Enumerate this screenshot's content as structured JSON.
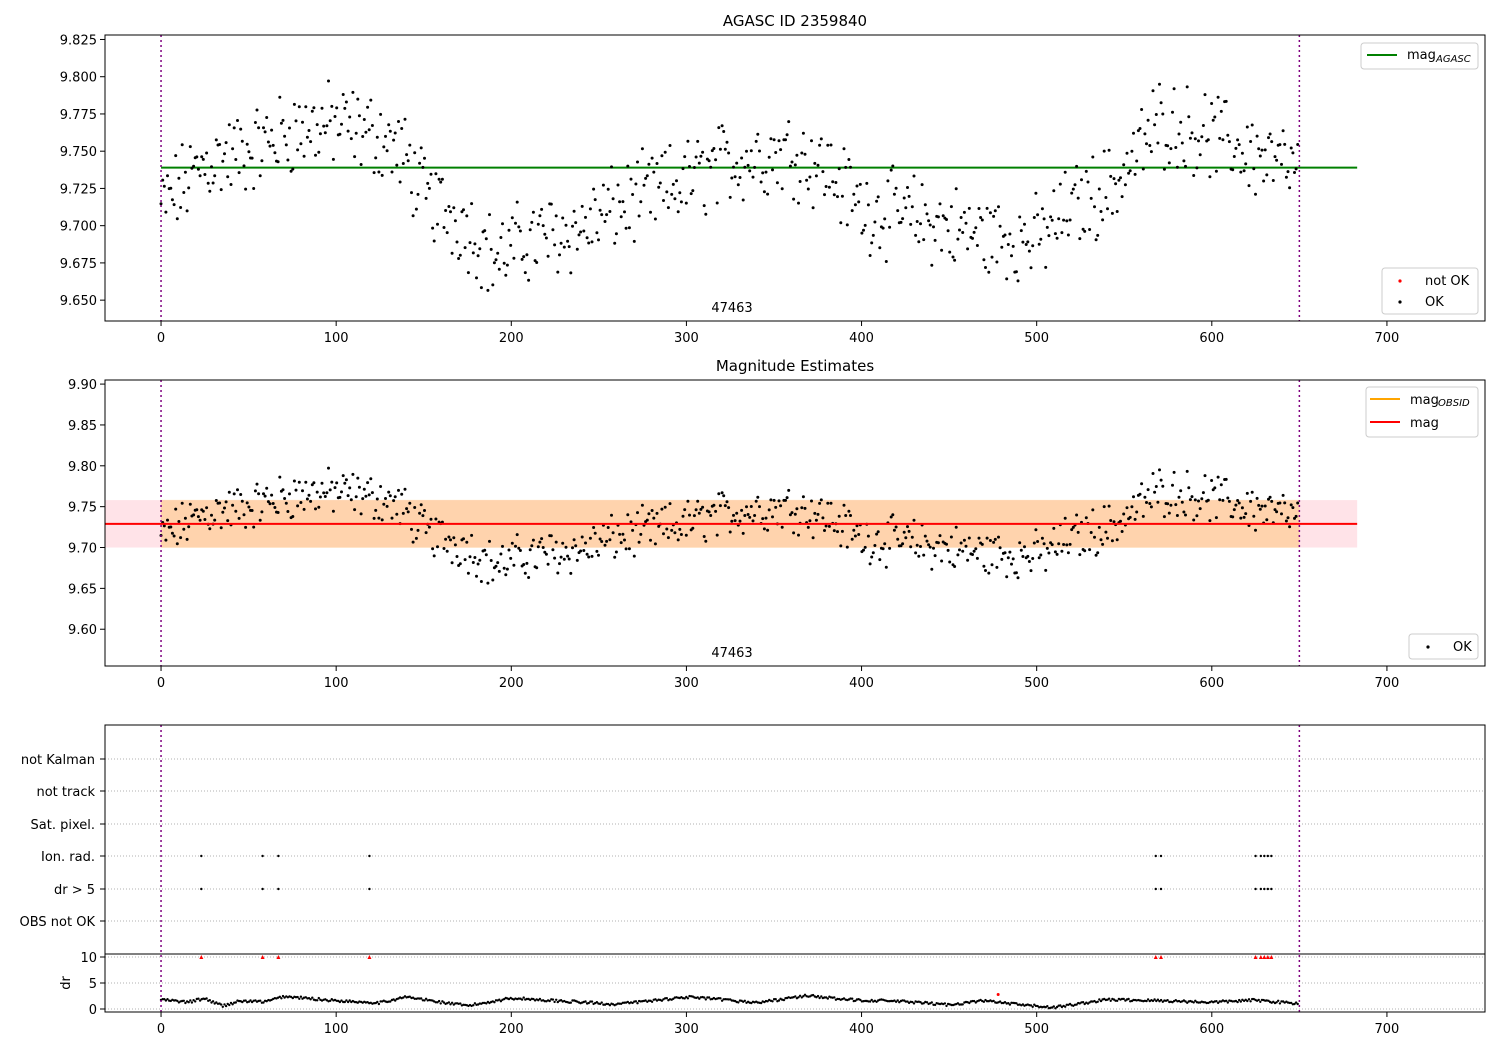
{
  "figure": {
    "x_ticks": [
      0,
      100,
      200,
      300,
      400,
      500,
      600,
      700
    ],
    "x_range": [
      -32,
      756
    ],
    "obs_bounds": [
      0,
      650
    ],
    "series_x_max": 683
  },
  "chart_data": [
    {
      "type": "scatter",
      "title": "AGASC ID 2359840",
      "annotation": "47463",
      "ylim": [
        9.636,
        9.828
      ],
      "y_ticks": [
        9.65,
        9.675,
        9.7,
        9.725,
        9.75,
        9.775,
        9.8,
        9.825
      ],
      "y_tick_labels": [
        "9.650",
        "9.675",
        "9.700",
        "9.725",
        "9.750",
        "9.775",
        "9.800",
        "9.825"
      ],
      "reference_line": {
        "name": "mag_AGASC",
        "value": 9.739,
        "color": "#008000"
      },
      "legend_lines": [
        {
          "label": "mag",
          "sub": "AGASC",
          "color": "#008000"
        }
      ],
      "legend_points": [
        {
          "label": "not OK",
          "color": "#ff0000"
        },
        {
          "label": "OK",
          "color": "#000000"
        }
      ],
      "series": [
        {
          "name": "OK",
          "color": "#000000",
          "trend": [
            [
              0,
              9.712
            ],
            [
              25,
              9.742
            ],
            [
              50,
              9.75
            ],
            [
              75,
              9.764
            ],
            [
              100,
              9.768
            ],
            [
              125,
              9.76
            ],
            [
              140,
              9.745
            ],
            [
              150,
              9.72
            ],
            [
              175,
              9.7
            ],
            [
              190,
              9.678
            ],
            [
              210,
              9.69
            ],
            [
              240,
              9.698
            ],
            [
              260,
              9.712
            ],
            [
              290,
              9.725
            ],
            [
              330,
              9.745
            ],
            [
              360,
              9.75
            ],
            [
              380,
              9.738
            ],
            [
              400,
              9.712
            ],
            [
              430,
              9.705
            ],
            [
              470,
              9.693
            ],
            [
              500,
              9.69
            ],
            [
              520,
              9.712
            ],
            [
              545,
              9.728
            ],
            [
              570,
              9.77
            ],
            [
              600,
              9.76
            ],
            [
              630,
              9.745
            ],
            [
              650,
              9.735
            ]
          ]
        }
      ]
    },
    {
      "type": "scatter",
      "title": "Magnitude Estimates",
      "annotation": "47463",
      "ylim": [
        9.555,
        9.905
      ],
      "y_ticks": [
        9.6,
        9.65,
        9.7,
        9.75,
        9.8,
        9.85,
        9.9
      ],
      "y_tick_labels": [
        "9.60",
        "9.65",
        "9.70",
        "9.75",
        "9.80",
        "9.85",
        "9.90"
      ],
      "reference_lines": [
        {
          "name": "mag",
          "value": 9.729,
          "color": "#ff0000"
        }
      ],
      "bands": [
        {
          "lo": 9.7,
          "hi": 9.758,
          "color": "#ffc0cb"
        },
        {
          "lo": 9.7,
          "hi": 9.758,
          "color": "#ffa500"
        }
      ],
      "legend_lines": [
        {
          "label": "mag",
          "sub": "OBSID",
          "color": "#ffa500"
        },
        {
          "label": "mag",
          "sub": "",
          "color": "#ff0000"
        }
      ],
      "legend_points": [
        {
          "label": "OK",
          "color": "#000000"
        }
      ],
      "series": [
        {
          "name": "OK",
          "color": "#000000",
          "trend": [
            [
              0,
              9.712
            ],
            [
              25,
              9.742
            ],
            [
              50,
              9.75
            ],
            [
              75,
              9.764
            ],
            [
              100,
              9.768
            ],
            [
              125,
              9.76
            ],
            [
              140,
              9.745
            ],
            [
              150,
              9.72
            ],
            [
              175,
              9.7
            ],
            [
              190,
              9.678
            ],
            [
              210,
              9.69
            ],
            [
              240,
              9.698
            ],
            [
              260,
              9.712
            ],
            [
              290,
              9.725
            ],
            [
              330,
              9.745
            ],
            [
              360,
              9.75
            ],
            [
              380,
              9.738
            ],
            [
              400,
              9.712
            ],
            [
              430,
              9.705
            ],
            [
              470,
              9.693
            ],
            [
              500,
              9.69
            ],
            [
              520,
              9.712
            ],
            [
              545,
              9.728
            ],
            [
              570,
              9.77
            ],
            [
              600,
              9.76
            ],
            [
              630,
              9.745
            ],
            [
              650,
              9.735
            ]
          ]
        }
      ]
    },
    {
      "type": "scatter",
      "title": "",
      "flag_rows": [
        "not Kalman",
        "not track",
        "Sat. pixel.",
        "Ion. rad.",
        "dr > 5",
        "OBS not OK"
      ],
      "flag_points": {
        "Ion. rad.": [
          23,
          58,
          67,
          119,
          568,
          571,
          625,
          628,
          630,
          632,
          634
        ],
        "dr > 5": [
          23,
          58,
          67,
          119,
          568,
          571,
          625,
          628,
          630,
          632,
          634
        ]
      },
      "dr_ylabel": "dr",
      "dr_ylim": [
        0,
        10
      ],
      "dr_y_ticks": [
        0,
        5,
        10
      ],
      "dr_y_tick_labels": [
        "0",
        "5",
        "10"
      ],
      "dr_flag_x": [
        23,
        58,
        67,
        119,
        568,
        571,
        625,
        628,
        630,
        632,
        634
      ],
      "dr_outlier": {
        "x": 478,
        "y": 2.8,
        "color": "#ff0000"
      },
      "dr_trend": [
        [
          0,
          1.8
        ],
        [
          15,
          1.3
        ],
        [
          25,
          2.0
        ],
        [
          35,
          0.6
        ],
        [
          45,
          1.5
        ],
        [
          60,
          1.4
        ],
        [
          70,
          2.4
        ],
        [
          100,
          1.6
        ],
        [
          125,
          1.2
        ],
        [
          140,
          2.3
        ],
        [
          160,
          1.3
        ],
        [
          175,
          0.6
        ],
        [
          200,
          2.1
        ],
        [
          215,
          1.8
        ],
        [
          230,
          1.5
        ],
        [
          260,
          0.9
        ],
        [
          300,
          2.3
        ],
        [
          320,
          1.8
        ],
        [
          340,
          1.2
        ],
        [
          370,
          2.6
        ],
        [
          390,
          1.8
        ],
        [
          420,
          1.5
        ],
        [
          450,
          0.8
        ],
        [
          470,
          1.6
        ],
        [
          490,
          0.8
        ],
        [
          510,
          0.3
        ],
        [
          540,
          1.8
        ],
        [
          570,
          1.6
        ],
        [
          600,
          1.3
        ],
        [
          625,
          1.7
        ],
        [
          650,
          1.0
        ]
      ]
    }
  ]
}
